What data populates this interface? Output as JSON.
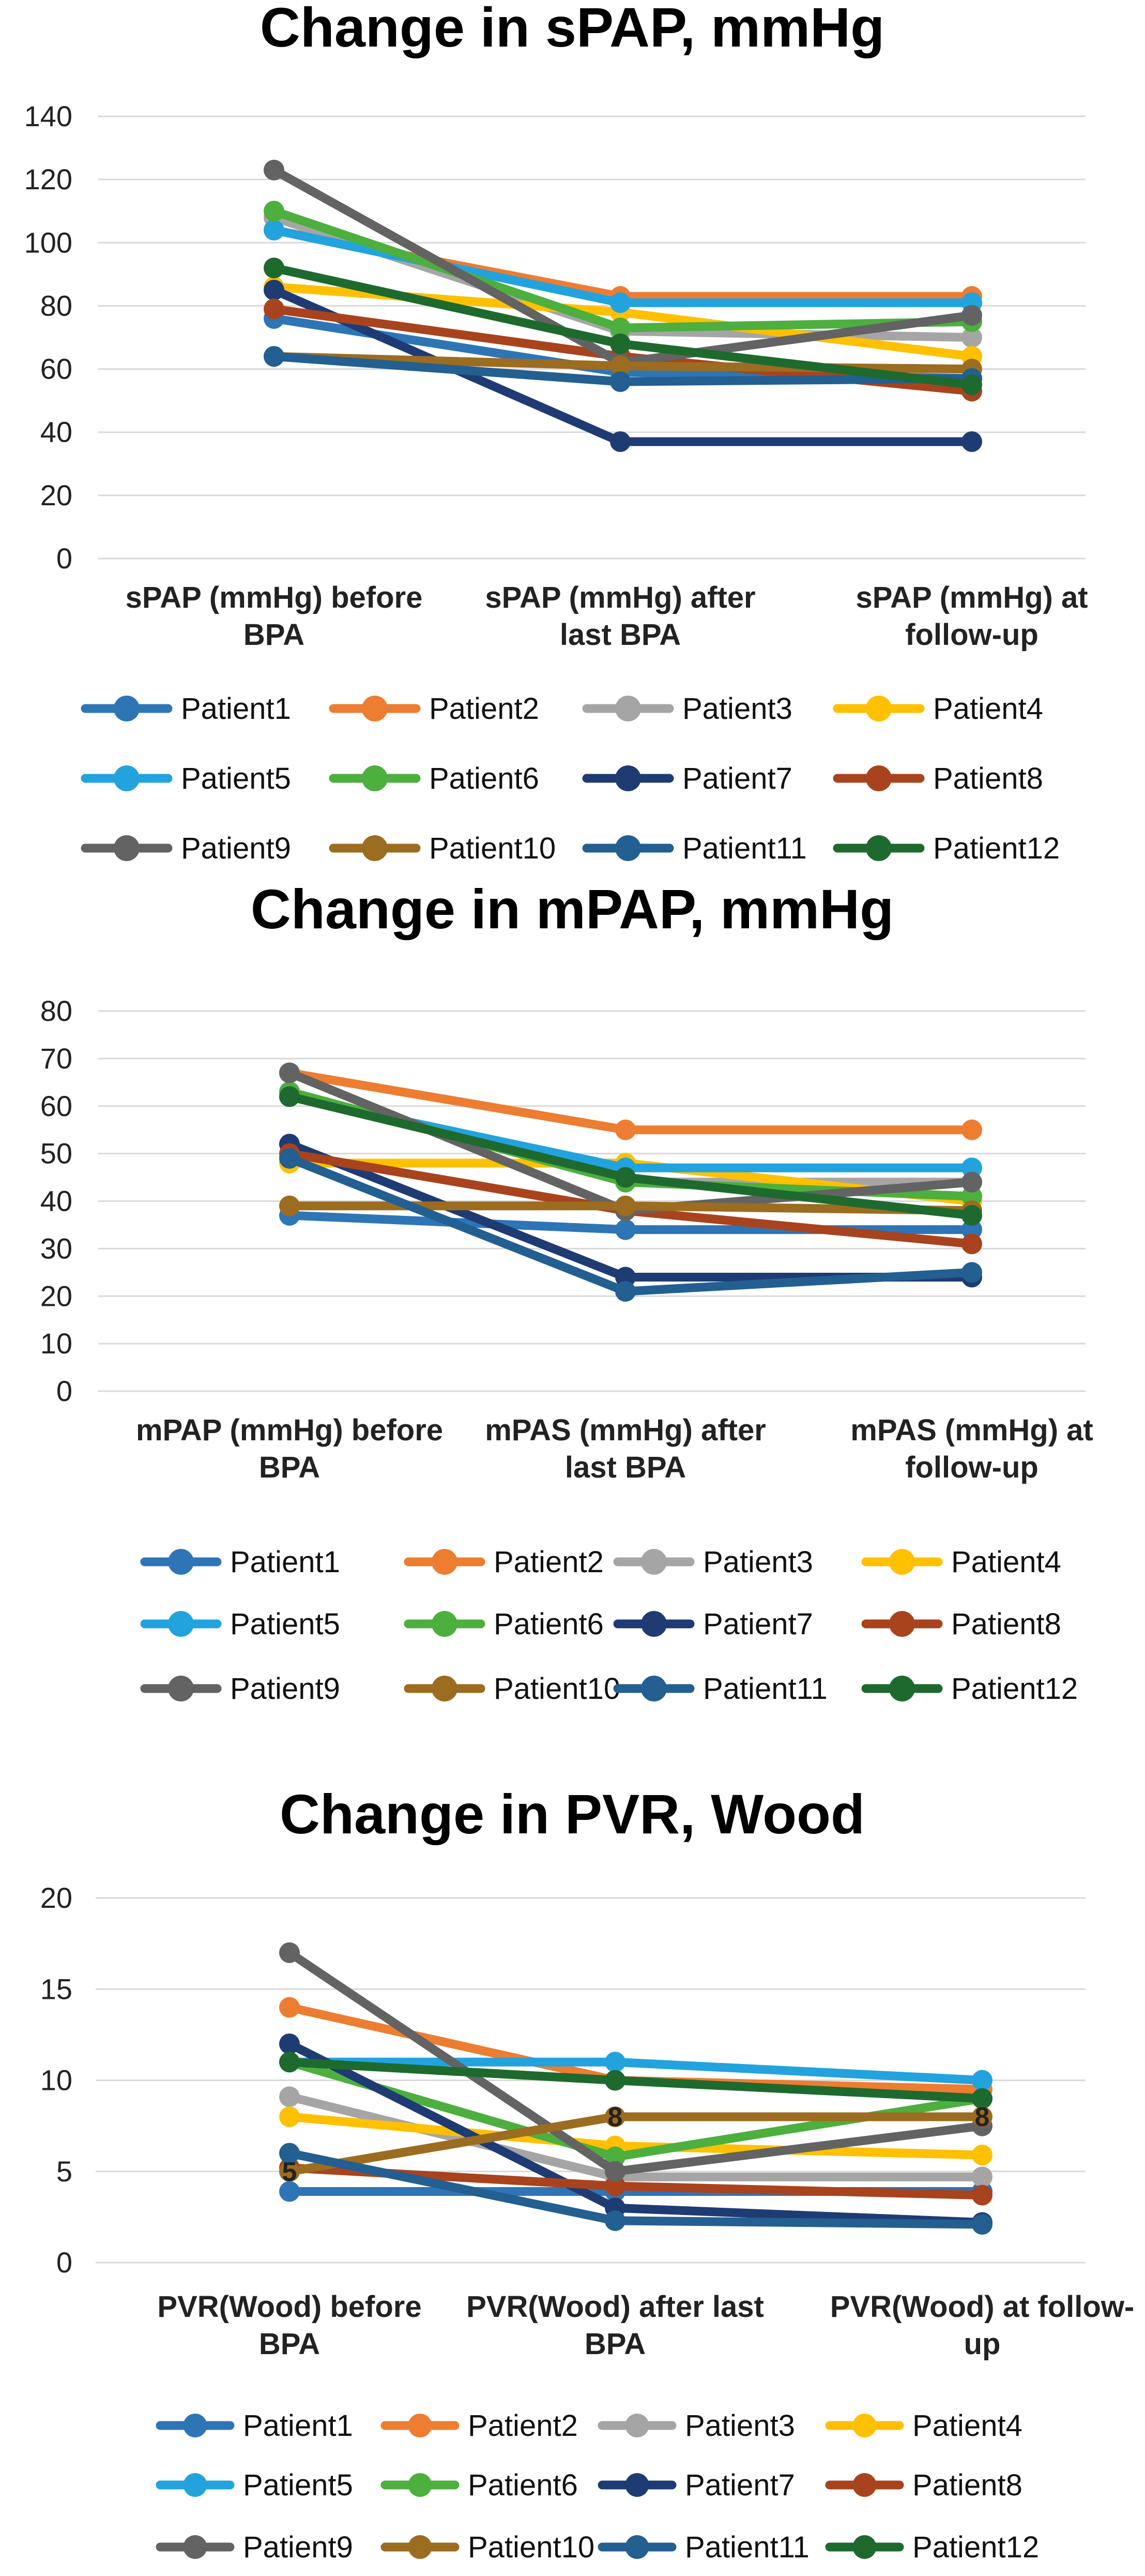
{
  "colors": {
    "Patient1": "#2e75b6",
    "Patient2": "#ed7d31",
    "Patient3": "#a5a5a5",
    "Patient4": "#ffc000",
    "Patient5": "#22a3de",
    "Patient6": "#4caf3e",
    "Patient7": "#1f3b73",
    "Patient8": "#a9431e",
    "Patient9": "#636363",
    "Patient10": "#9c6c20",
    "Patient11": "#235f91",
    "Patient12": "#1e6a2e",
    "grid": "#d9d9d9"
  },
  "chart_data": [
    {
      "type": "line",
      "title": "Change in sPAP, mmHg",
      "categories": [
        [
          "sPAP (mmHg) before",
          "BPA"
        ],
        [
          "sPAP (mmHg) after",
          "last BPA"
        ],
        [
          "sPAP (mmHg) at",
          "follow-up"
        ]
      ],
      "ylim": [
        0,
        140
      ],
      "yticks": [
        0,
        20,
        40,
        60,
        80,
        100,
        120,
        140
      ],
      "grid": true,
      "legend_position": "bottom",
      "series": [
        {
          "name": "Patient1",
          "values": [
            76,
            59,
            57
          ]
        },
        {
          "name": "Patient2",
          "values": [
            104,
            83,
            83
          ]
        },
        {
          "name": "Patient3",
          "values": [
            108,
            72,
            70
          ]
        },
        {
          "name": "Patient4",
          "values": [
            86,
            78,
            64
          ]
        },
        {
          "name": "Patient5",
          "values": [
            104,
            81,
            81
          ]
        },
        {
          "name": "Patient6",
          "values": [
            110,
            73,
            75
          ]
        },
        {
          "name": "Patient7",
          "values": [
            85,
            37,
            37
          ]
        },
        {
          "name": "Patient8",
          "values": [
            79,
            64,
            53
          ]
        },
        {
          "name": "Patient9",
          "values": [
            123,
            62,
            77
          ]
        },
        {
          "name": "Patient10",
          "values": [
            64,
            61,
            60
          ]
        },
        {
          "name": "Patient11",
          "values": [
            64,
            56,
            57
          ]
        },
        {
          "name": "Patient12",
          "values": [
            92,
            68,
            55
          ]
        }
      ],
      "annotations": []
    },
    {
      "type": "line",
      "title": "Change in mPAP, mmHg",
      "categories": [
        [
          "mPAP (mmHg) before",
          "BPA"
        ],
        [
          "mPAS (mmHg) after",
          "last BPA"
        ],
        [
          "mPAS  (mmHg) at",
          "follow-up"
        ]
      ],
      "ylim": [
        0,
        80
      ],
      "yticks": [
        0,
        10,
        20,
        30,
        40,
        50,
        60,
        70,
        80
      ],
      "grid": true,
      "legend_position": "bottom",
      "series": [
        {
          "name": "Patient1",
          "values": [
            37,
            34,
            34
          ]
        },
        {
          "name": "Patient2",
          "values": [
            67,
            55,
            55
          ]
        },
        {
          "name": "Patient3",
          "values": [
            63,
            44,
            44
          ]
        },
        {
          "name": "Patient4",
          "values": [
            48,
            48,
            40
          ]
        },
        {
          "name": "Patient5",
          "values": [
            62,
            47,
            47
          ]
        },
        {
          "name": "Patient6",
          "values": [
            63,
            44,
            41
          ]
        },
        {
          "name": "Patient7",
          "values": [
            52,
            24,
            24
          ]
        },
        {
          "name": "Patient8",
          "values": [
            50,
            38,
            31
          ]
        },
        {
          "name": "Patient9",
          "values": [
            67,
            38,
            44
          ]
        },
        {
          "name": "Patient10",
          "values": [
            39,
            39,
            38
          ]
        },
        {
          "name": "Patient11",
          "values": [
            49,
            21,
            25
          ]
        },
        {
          "name": "Patient12",
          "values": [
            62,
            45,
            37
          ]
        }
      ],
      "annotations": []
    },
    {
      "type": "line",
      "title": "Change in PVR, Wood",
      "categories": [
        [
          "PVR(Wood) before",
          "BPA"
        ],
        [
          "PVR(Wood) after last",
          "BPA"
        ],
        [
          "PVR(Wood) at follow-",
          "up"
        ]
      ],
      "ylim": [
        0,
        20
      ],
      "yticks": [
        0,
        5,
        10,
        15,
        20
      ],
      "grid": true,
      "legend_position": "bottom",
      "series": [
        {
          "name": "Patient1",
          "values": [
            3.9,
            3.9,
            3.9
          ]
        },
        {
          "name": "Patient2",
          "values": [
            14,
            10,
            9.5
          ]
        },
        {
          "name": "Patient3",
          "values": [
            9.1,
            4.7,
            4.7
          ]
        },
        {
          "name": "Patient4",
          "values": [
            8,
            6.4,
            5.9
          ]
        },
        {
          "name": "Patient5",
          "values": [
            11,
            11,
            10
          ]
        },
        {
          "name": "Patient6",
          "values": [
            11,
            5.8,
            9
          ]
        },
        {
          "name": "Patient7",
          "values": [
            12,
            3,
            2.2
          ]
        },
        {
          "name": "Patient8",
          "values": [
            5.2,
            4.2,
            3.7
          ]
        },
        {
          "name": "Patient9",
          "values": [
            17,
            5,
            7.5
          ]
        },
        {
          "name": "Patient10",
          "values": [
            5,
            8,
            8
          ]
        },
        {
          "name": "Patient11",
          "values": [
            6,
            2.3,
            2.1
          ]
        },
        {
          "name": "Patient12",
          "values": [
            11,
            10,
            9
          ]
        }
      ],
      "annotations": [
        {
          "series": "Patient10",
          "index": 0,
          "text": "5"
        },
        {
          "series": "Patient10",
          "index": 1,
          "text": "8"
        },
        {
          "series": "Patient10",
          "index": 2,
          "text": "8"
        }
      ]
    }
  ]
}
